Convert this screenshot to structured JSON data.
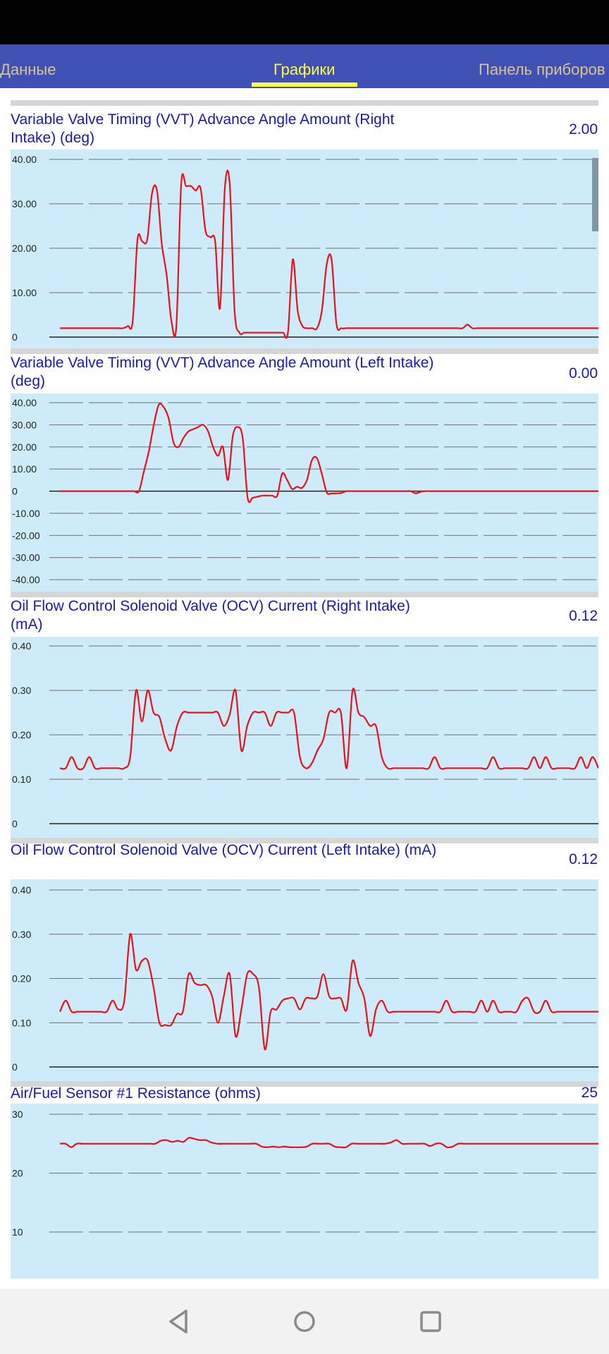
{
  "tabs": [
    {
      "label": "Данные",
      "active": false
    },
    {
      "label": "Графики",
      "active": true
    },
    {
      "label": "Панель приборов",
      "active": false
    }
  ],
  "nav": {
    "back_icon": "back-triangle-icon",
    "home_icon": "home-circle-icon",
    "recents_icon": "recents-square-icon"
  },
  "colors": {
    "accent": "#3f51b5",
    "active_tab": "#ffff3b",
    "chart_bg": "#cdebf9",
    "line": "#e8101a",
    "title": "#1a1aa8"
  },
  "charts": [
    {
      "title": "Variable Valve Timing (VVT) Advance Angle Amount (Right Intake) (deg)",
      "value": "2.00",
      "chart_data": {
        "type": "line",
        "ylim": [
          0,
          40
        ],
        "yticks": [
          "40.00",
          "30.00",
          "20.00",
          "10.00",
          "0"
        ],
        "y": [
          2,
          2,
          2,
          2,
          2,
          2,
          2,
          2,
          2,
          2,
          2,
          2,
          2,
          2,
          2.5,
          3.5,
          22,
          21.5,
          22,
          32.5,
          33,
          21,
          14,
          3.5,
          2.5,
          34.5,
          34,
          34,
          33,
          33.5,
          24,
          22.5,
          21.5,
          6.5,
          33.5,
          34.5,
          6,
          1,
          1,
          1,
          1,
          1,
          1,
          1,
          1,
          1,
          1,
          1,
          17.5,
          6,
          2.5,
          2,
          2,
          2,
          6,
          16.5,
          17.5,
          3,
          2,
          2,
          2,
          2,
          2,
          2,
          2,
          2,
          2,
          2,
          2,
          2,
          2,
          2,
          2,
          2,
          2,
          2,
          2,
          2,
          2,
          2,
          2,
          2,
          2,
          2,
          2.8,
          2,
          2,
          2,
          2,
          2,
          2,
          2,
          2,
          2,
          2,
          2,
          2,
          2,
          2,
          2,
          2,
          2,
          2,
          2,
          2,
          2,
          2,
          2,
          2,
          2,
          2,
          2
        ]
      }
    },
    {
      "title": "Variable Valve Timing (VVT) Advance Angle Amount (Left Intake) (deg)",
      "value": "0.00",
      "chart_data": {
        "type": "line",
        "ylim": [
          -40,
          40
        ],
        "yticks": [
          "40.00",
          "30.00",
          "20.00",
          "10.00",
          "0",
          "-10.00",
          "-20.00",
          "-30.00",
          "-40.00"
        ],
        "y": [
          0,
          0,
          0,
          0,
          0,
          0,
          0,
          0,
          0,
          0,
          0,
          0,
          0,
          0,
          0,
          0,
          0,
          9,
          18,
          30,
          39,
          38,
          33,
          22,
          20,
          24,
          27,
          28,
          29,
          30,
          27,
          20,
          16,
          20,
          5,
          25,
          29,
          24,
          -3,
          -3,
          -2.5,
          -2,
          -2,
          -2,
          -2,
          8,
          5,
          1,
          2,
          1.5,
          5,
          14,
          15,
          8,
          -0.5,
          -1,
          -1,
          -0.8,
          0,
          0,
          0,
          0,
          0,
          0,
          0,
          0,
          0,
          0,
          0,
          0,
          0,
          0,
          -1,
          -0.3,
          0,
          0,
          0,
          0,
          0,
          0,
          0,
          0,
          0,
          0,
          0,
          0,
          0,
          0,
          0,
          0,
          0,
          0,
          0,
          0,
          0,
          0,
          0,
          0,
          0,
          0,
          0,
          0,
          0,
          0,
          0,
          0,
          0,
          0,
          0,
          0
        ]
      }
    },
    {
      "title": "Oil Flow Control Solenoid Valve (OCV) Current (Right Intake) (mA)",
      "value": "0.12",
      "chart_data": {
        "type": "line",
        "ylim": [
          0,
          0.4
        ],
        "yticks": [
          "0.40",
          "0.30",
          "0.20",
          "0.10",
          "0"
        ],
        "y": [
          0.125,
          0.125,
          0.15,
          0.125,
          0.125,
          0.15,
          0.125,
          0.125,
          0.125,
          0.125,
          0.125,
          0.125,
          0.15,
          0.3,
          0.23,
          0.3,
          0.25,
          0.24,
          0.19,
          0.165,
          0.22,
          0.25,
          0.25,
          0.25,
          0.25,
          0.25,
          0.25,
          0.25,
          0.22,
          0.245,
          0.3,
          0.165,
          0.22,
          0.25,
          0.25,
          0.25,
          0.22,
          0.25,
          0.25,
          0.25,
          0.25,
          0.15,
          0.125,
          0.135,
          0.165,
          0.19,
          0.25,
          0.25,
          0.25,
          0.125,
          0.3,
          0.25,
          0.24,
          0.22,
          0.22,
          0.15,
          0.125,
          0.125,
          0.125,
          0.125,
          0.125,
          0.125,
          0.125,
          0.125,
          0.15,
          0.125,
          0.125,
          0.125,
          0.125,
          0.125,
          0.125,
          0.125,
          0.125,
          0.125,
          0.15,
          0.125,
          0.125,
          0.125,
          0.125,
          0.125,
          0.125,
          0.15,
          0.125,
          0.15,
          0.125,
          0.125,
          0.125,
          0.125,
          0.125,
          0.15,
          0.125,
          0.15,
          0.125
        ]
      }
    },
    {
      "title": "Oil Flow Control Solenoid Valve (OCV) Current (Left Intake) (mA)",
      "value": "0.12",
      "chart_data": {
        "type": "line",
        "ylim": [
          0,
          0.4
        ],
        "yticks": [
          "0.40",
          "0.30",
          "0.20",
          "0.10",
          "0"
        ],
        "y": [
          0.125,
          0.15,
          0.125,
          0.125,
          0.125,
          0.125,
          0.125,
          0.125,
          0.125,
          0.15,
          0.13,
          0.15,
          0.3,
          0.22,
          0.24,
          0.24,
          0.18,
          0.1,
          0.095,
          0.095,
          0.12,
          0.125,
          0.21,
          0.19,
          0.185,
          0.185,
          0.16,
          0.1,
          0.16,
          0.21,
          0.07,
          0.13,
          0.21,
          0.21,
          0.18,
          0.04,
          0.125,
          0.13,
          0.15,
          0.155,
          0.155,
          0.13,
          0.155,
          0.155,
          0.16,
          0.21,
          0.16,
          0.155,
          0.155,
          0.13,
          0.24,
          0.19,
          0.155,
          0.07,
          0.13,
          0.15,
          0.125,
          0.125,
          0.125,
          0.125,
          0.125,
          0.125,
          0.125,
          0.125,
          0.125,
          0.125,
          0.15,
          0.125,
          0.125,
          0.125,
          0.125,
          0.125,
          0.15,
          0.125,
          0.15,
          0.125,
          0.125,
          0.125,
          0.125,
          0.15,
          0.155,
          0.125,
          0.125,
          0.15,
          0.125,
          0.125,
          0.125,
          0.125,
          0.125,
          0.125,
          0.125,
          0.125,
          0.125
        ]
      }
    },
    {
      "title": "Air/Fuel Sensor #1 Resistance (ohms)",
      "value": "25",
      "chart_data": {
        "type": "line",
        "ylim": [
          7,
          30
        ],
        "yticks": [
          "30",
          "20",
          "10"
        ],
        "y": [
          25,
          25,
          24.4,
          25,
          25,
          25,
          25,
          25,
          25,
          25,
          25,
          25,
          25,
          25,
          25,
          25,
          25,
          25,
          25.5,
          25.6,
          25.3,
          25.5,
          25.3,
          26,
          25.8,
          25.6,
          25.6,
          25.2,
          25,
          25,
          25,
          25,
          25,
          25,
          25,
          25,
          24.5,
          24.4,
          24.5,
          24.4,
          24.5,
          24.4,
          24.4,
          24.4,
          24.5,
          25,
          25,
          25,
          25,
          24.5,
          24.4,
          24.4,
          25,
          25,
          25,
          25,
          25,
          25,
          25,
          25.2,
          25.6,
          25,
          25,
          25,
          25,
          25,
          24.6,
          25,
          25,
          24.4,
          24.5,
          25,
          25,
          25,
          25,
          25,
          25,
          25,
          25,
          25,
          25,
          25,
          25,
          25,
          25,
          25,
          25,
          25,
          25,
          25,
          25,
          25,
          25,
          25,
          25,
          25,
          25
        ]
      }
    }
  ]
}
